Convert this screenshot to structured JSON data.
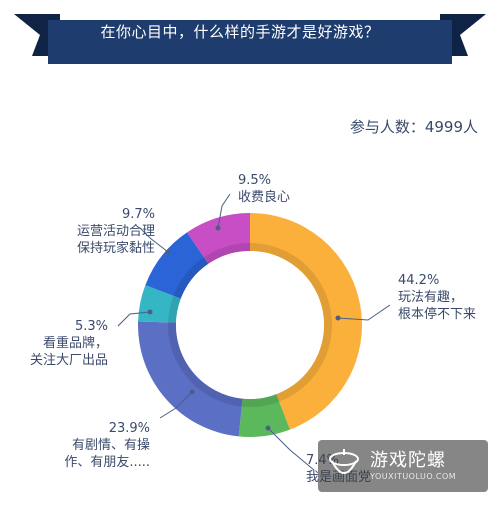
{
  "header": {
    "title": "在你心目中，什么样的手游才是好游戏？"
  },
  "participants": "参与人数：4999人",
  "colors": {
    "banner": "#1e3d6e",
    "ribbon_tail": "#0f2347",
    "leader": "#4a5f86"
  },
  "chart_data": {
    "type": "pie",
    "donut": true,
    "title": "在你心目中，什么样的手游才是好游戏？",
    "slices": [
      {
        "pct_label": "44.2%",
        "value": 44.2,
        "label": "玩法有趣，\n根本停不下来",
        "color": "#fbb03b"
      },
      {
        "pct_label": "7.4%",
        "value": 7.4,
        "label": "我是画面党",
        "color": "#5cb85c"
      },
      {
        "pct_label": "23.9%",
        "value": 23.9,
        "label": "有剧情、有操\n作、有朋友.....",
        "color": "#5b6fc4"
      },
      {
        "pct_label": "5.3%",
        "value": 5.3,
        "label": "看重品牌，\n关注大厂出品",
        "color": "#35b6c4"
      },
      {
        "pct_label": "9.7%",
        "value": 9.7,
        "label": "运营活动合理\n保持玩家黏性",
        "color": "#2a64d6"
      },
      {
        "pct_label": "9.5%",
        "value": 9.5,
        "label": "收费良心",
        "color": "#c74ec4"
      }
    ]
  },
  "labels": {
    "s0_pct": "44.2%",
    "s0_l1": "玩法有趣，",
    "s0_l2": "根本停不下来",
    "s1_pct": "7.4%",
    "s1_l1": "我是画面党",
    "s2_pct": "23.9%",
    "s2_l1": "有剧情、有操",
    "s2_l2": "作、有朋友.....",
    "s3_pct": "5.3%",
    "s3_l1": "看重品牌，",
    "s3_l2": "关注大厂出品",
    "s4_pct": "9.7%",
    "s4_l1": "运营活动合理",
    "s4_l2": "保持玩家黏性",
    "s5_pct": "9.5%",
    "s5_l1": "收费良心"
  },
  "watermark": {
    "text": "游戏陀螺",
    "url": "YOUXITUOLUO.COM"
  }
}
